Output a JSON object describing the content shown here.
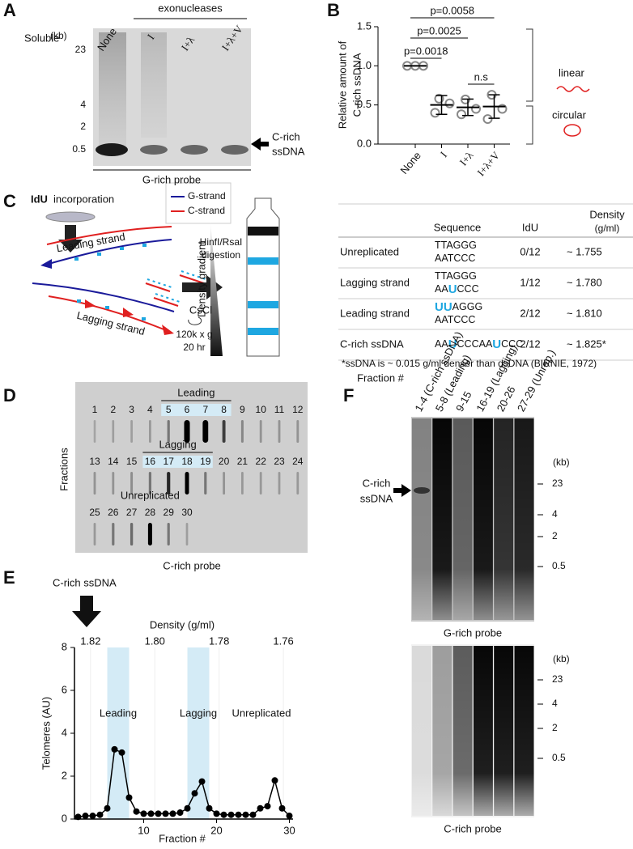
{
  "panel_a": {
    "letter": "A",
    "header": "exonucleases",
    "soluble": "Soluble",
    "lanes": [
      "None",
      "I",
      "I+λ",
      "I+λ+V"
    ],
    "kb": "(kb)",
    "markers": [
      "23",
      "4",
      "2",
      "0.5"
    ],
    "arrow_label": [
      "C-rich",
      "ssDNA"
    ],
    "probe": "G-rich probe"
  },
  "chart_data": [
    {
      "type": "dot",
      "label": "B",
      "ylabel": [
        "Relative amount of",
        "C-rich ssDNA"
      ],
      "categories": [
        "None",
        "I",
        "I+λ",
        "I+λ+V"
      ],
      "replicates": [
        [
          1,
          1,
          1
        ],
        [
          0.58,
          0.52,
          0.4
        ],
        [
          0.57,
          0.45,
          0.38
        ],
        [
          0.63,
          0.45,
          0.32
        ]
      ],
      "mean": [
        1,
        0.5,
        0.47,
        0.48
      ],
      "sd": [
        0,
        0.12,
        0.105,
        0.15
      ],
      "color": "#888888",
      "ylim": [
        0,
        1.5
      ],
      "yticks": [
        {
          "value": 0,
          "label": "0.0"
        },
        {
          "value": 0.5,
          "label": "0.5"
        },
        {
          "value": 1,
          "label": "1.0"
        },
        {
          "value": 1.5,
          "label": "1.5"
        }
      ],
      "comparisons": [
        {
          "label": "p=0.0058",
          "from": 0,
          "to": 3
        },
        {
          "label": "p=0.0025",
          "from": 0,
          "to": 2
        },
        {
          "label": "p=0.0018",
          "from": 0,
          "to": 1
        },
        {
          "label": "n.s",
          "from": 2,
          "to": 3
        }
      ],
      "brackets": [
        "linear",
        "circular"
      ],
      "bracket_color": "#e02020"
    },
    {
      "type": "line",
      "label": "E",
      "x": [
        1,
        2,
        3,
        4,
        5,
        6,
        7,
        8,
        9,
        10,
        11,
        12,
        13,
        14,
        15,
        16,
        17,
        18,
        19,
        20,
        21,
        22,
        23,
        24,
        25,
        26,
        27,
        28,
        29,
        30
      ],
      "values": [
        0.1,
        0.15,
        0.15,
        0.2,
        0.5,
        3.25,
        3.1,
        1.0,
        0.35,
        0.25,
        0.25,
        0.25,
        0.25,
        0.25,
        0.3,
        0.5,
        1.2,
        1.75,
        0.5,
        0.25,
        0.2,
        0.2,
        0.2,
        0.2,
        0.2,
        0.5,
        0.6,
        1.8,
        0.5,
        0.15
      ],
      "color": "#000000",
      "xlim": [
        0.5,
        30.5
      ],
      "xticks": [
        10,
        20,
        30
      ],
      "ylim": [
        0,
        8
      ],
      "yticks": [
        0,
        2,
        4,
        6,
        8
      ],
      "xlabel": "Fraction #",
      "ylabel": "Telomeres (AU)",
      "x2label": "Density (g/ml)",
      "x2lim": [
        1.825,
        1.757
      ],
      "x2ticks": [
        1.82,
        {
          "value": 1.8,
          "label": "1.80"
        },
        1.78,
        1.76
      ],
      "shaded": [
        [
          5,
          8
        ],
        [
          16,
          19
        ]
      ],
      "shade_color": "#d4ebf6",
      "annotations": [
        "Leading",
        "Lagging",
        "Unreplicated"
      ],
      "arrow_label": "C-rich ssDNA"
    }
  ],
  "panel_c": {
    "letter": "C",
    "idu_label": "IdU",
    "title": "incorporation",
    "legend": [
      "G-strand",
      "C-strand"
    ],
    "strands": [
      "Leading strand",
      "Lagging strand"
    ],
    "digestion": [
      "HinfI/RsaI",
      "digestion"
    ],
    "centrifuge": [
      "CsCl",
      "120k x g",
      "20 hr"
    ],
    "gradient_label": "Density gradient",
    "table": {
      "headers": [
        "Sequence",
        "IdU",
        "Density",
        "(g/ml)"
      ],
      "rows": [
        {
          "name": "Unreplicated",
          "sequence": [
            [
              {
                "text": "TTAGGG"
              }
            ],
            [
              {
                "text": "AATCCC"
              }
            ]
          ],
          "idu": "0/12",
          "density": "~ 1.755"
        },
        {
          "name": "Lagging strand",
          "sequence": [
            [
              {
                "text": "TTAGGG"
              }
            ],
            [
              {
                "text": "AA"
              },
              {
                "text": "U",
                "idu": true
              },
              {
                "text": "CCC"
              }
            ]
          ],
          "idu": "1/12",
          "density": "~ 1.780"
        },
        {
          "name": "Leading strand",
          "sequence": [
            [
              {
                "text": "UU",
                "idu": true
              },
              {
                "text": "AGGG"
              }
            ],
            [
              {
                "text": "AATCCC"
              }
            ]
          ],
          "idu": "2/12",
          "density": "~ 1.810"
        },
        {
          "name": "C-rich ssDNA",
          "sequence": [
            [
              {
                "text": "AA"
              },
              {
                "text": "U",
                "idu": true
              },
              {
                "text": "CCCAA"
              },
              {
                "text": "U",
                "idu": true
              },
              {
                "text": "CCC"
              }
            ]
          ],
          "idu": "2/12",
          "density": "~ 1.825*"
        }
      ],
      "footnote": "*ssDNA is ~ 0.015 g/ml denser than dsDNA (BIRNIE, 1972)"
    },
    "idu_color": "#1ea7e1"
  },
  "panel_d": {
    "letter": "D",
    "fractions": [
      [
        "1",
        "2",
        "3",
        "4",
        "5",
        "6",
        "7",
        "8",
        "9",
        "10",
        "11",
        "12"
      ],
      [
        "13",
        "14",
        "15",
        "16",
        "17",
        "18",
        "19",
        "20",
        "21",
        "22",
        "23",
        "24"
      ],
      [
        "25",
        "26",
        "27",
        "28",
        "29",
        "30"
      ]
    ],
    "groups": [
      {
        "label": "Leading",
        "fractions": [
          5,
          8
        ],
        "highlight": true
      },
      {
        "label": "Lagging",
        "fractions": [
          16,
          19
        ],
        "highlight": true
      },
      {
        "label": "Unreplicated",
        "fractions": [
          27,
          29
        ],
        "highlight": false
      }
    ],
    "ylabel": "Fractions",
    "probe": "C-rich probe"
  },
  "panel_f": {
    "letter": "F",
    "fraction_label": "Fraction #",
    "lanes": [
      "1-4 (C-rich ssDNA)",
      "5-8 (Leading)",
      "9-15",
      "16-19 (Lagging)",
      "20-26",
      "27-29 (Unrep.)"
    ],
    "kb": "(kb)",
    "markers": [
      "23",
      "4",
      "2",
      "0.5"
    ],
    "arrow_label": [
      "C-rich",
      "ssDNA"
    ],
    "probes": [
      "G-rich probe",
      "C-rich probe"
    ]
  }
}
